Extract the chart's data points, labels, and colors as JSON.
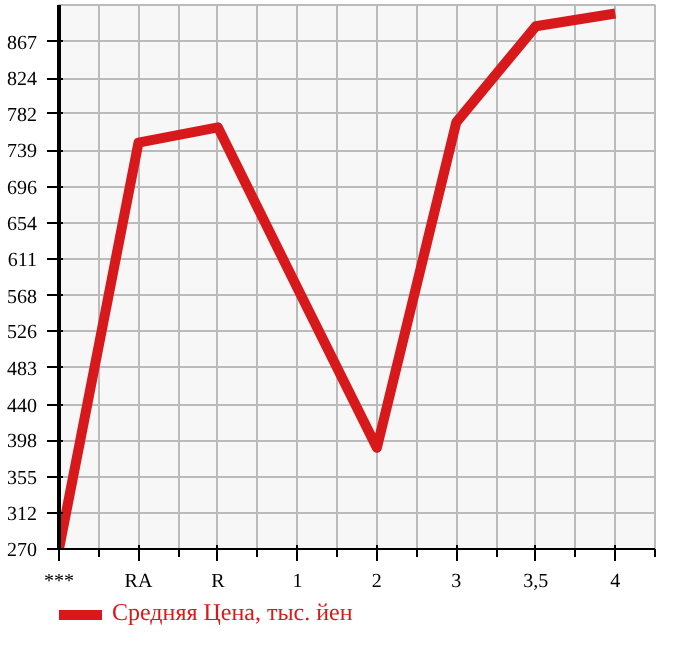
{
  "chart_data": {
    "type": "line",
    "categories": [
      "***",
      "RA",
      "R",
      "1",
      "2",
      "3",
      "3,5",
      "4"
    ],
    "series": [
      {
        "name": "Средняя Цена, тыс. йен",
        "color": "#d7191c",
        "values": [
          270,
          748,
          766,
          577,
          389,
          772,
          885,
          900
        ]
      }
    ],
    "ylim": [
      270,
      910
    ],
    "yticks": [
      270,
      312,
      355,
      398,
      440,
      483,
      526,
      568,
      611,
      654,
      696,
      739,
      782,
      824,
      867
    ],
    "grid": true,
    "legend": "bottom",
    "marker": "none",
    "line_style": "solid"
  }
}
